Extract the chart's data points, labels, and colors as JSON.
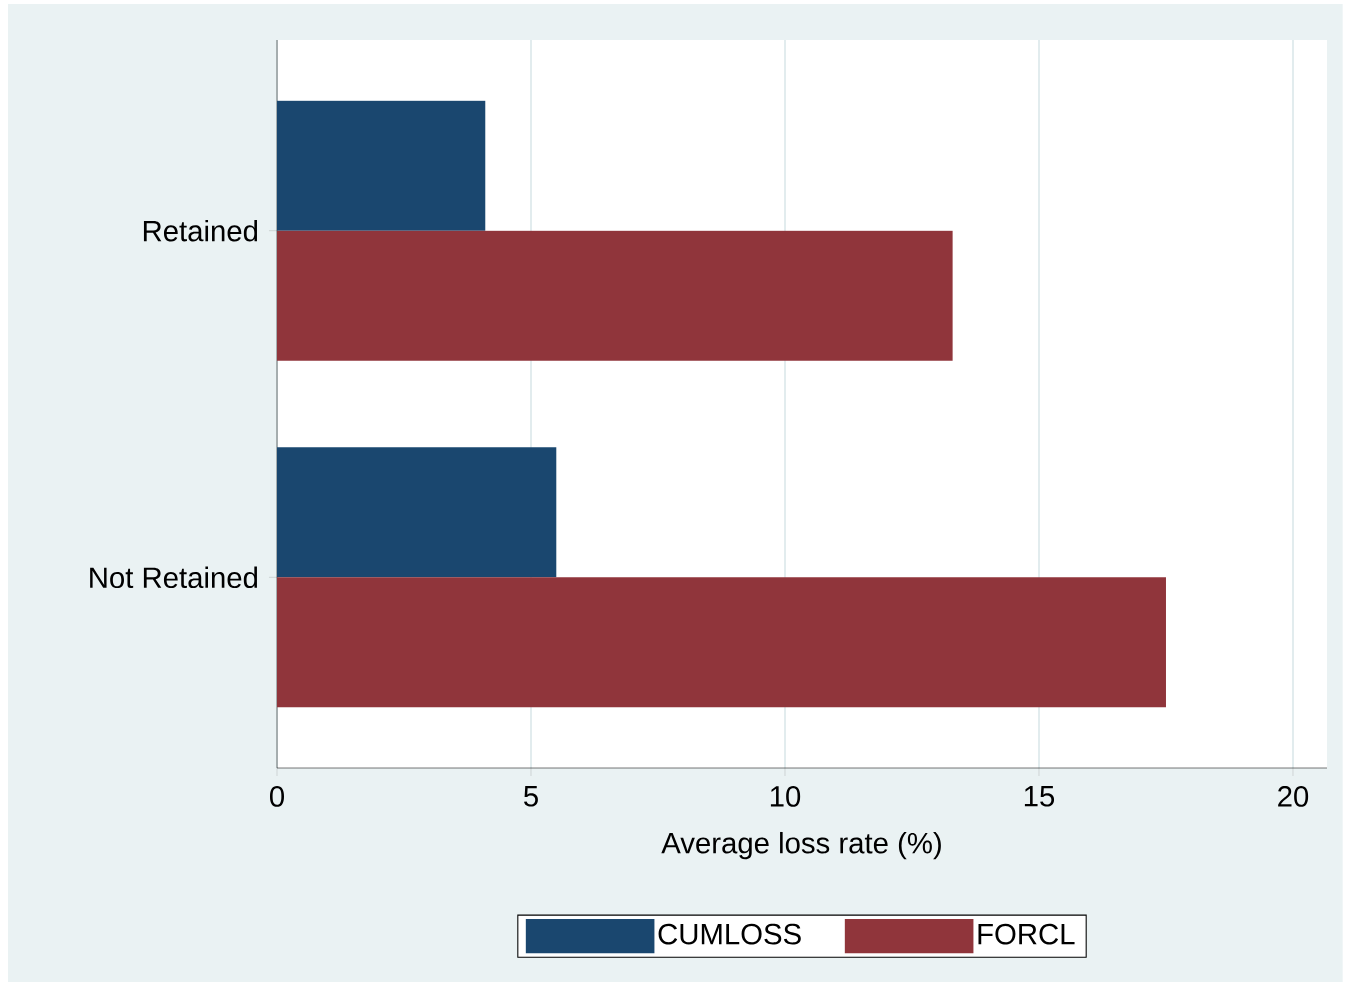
{
  "chart_data": {
    "type": "bar",
    "orientation": "horizontal",
    "categories": [
      "Retained",
      "Not Retained"
    ],
    "xlabel": "Average loss rate (%)",
    "xlim": [
      0,
      20.67
    ],
    "xticks": [
      0,
      5,
      10,
      15,
      20
    ],
    "series": [
      {
        "name": "CUMLOSS",
        "color": "#1a476f",
        "values": [
          4.1,
          5.5
        ]
      },
      {
        "name": "FORCL",
        "color": "#90353b",
        "values": [
          13.3,
          17.5
        ]
      }
    ],
    "grid": "x",
    "legend": "bottom"
  }
}
